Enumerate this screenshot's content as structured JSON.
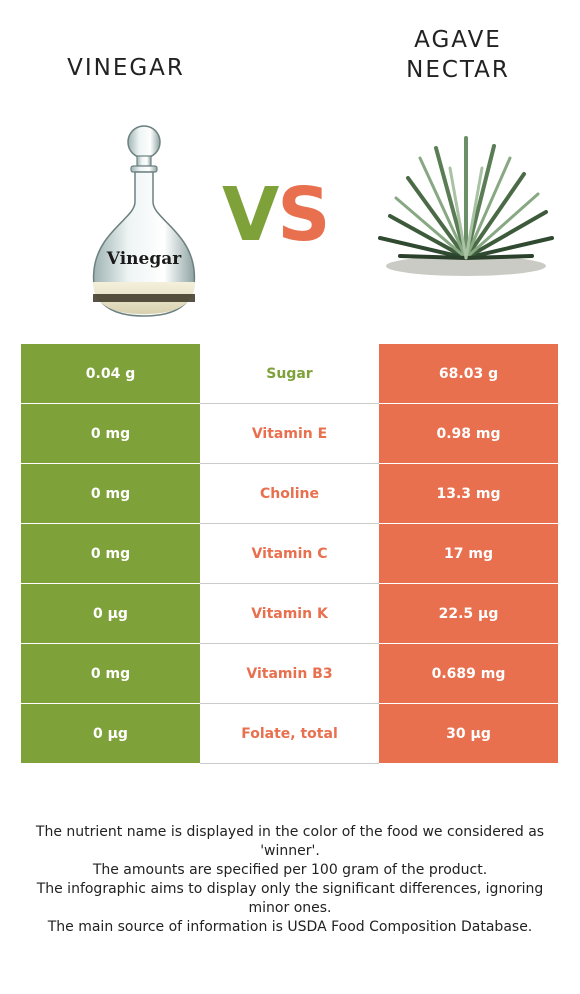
{
  "left_food": {
    "name": "VINEGAR",
    "color": "#7ea13a",
    "bottle_label": "Vinegar"
  },
  "right_food": {
    "name_line1": "AGAVE",
    "name_line2": "NECTAR",
    "color": "#e8704e"
  },
  "vs": {
    "v": "V",
    "s": "S"
  },
  "rows": [
    {
      "left": "0.04 g",
      "nutrient": "Sugar",
      "right": "68.03 g",
      "winner": "left"
    },
    {
      "left": "0 mg",
      "nutrient": "Vitamin E",
      "right": "0.98 mg",
      "winner": "right"
    },
    {
      "left": "0 mg",
      "nutrient": "Choline",
      "right": "13.3 mg",
      "winner": "right"
    },
    {
      "left": "0 mg",
      "nutrient": "Vitamin C",
      "right": "17 mg",
      "winner": "right"
    },
    {
      "left": "0 µg",
      "nutrient": "Vitamin K",
      "right": "22.5 µg",
      "winner": "right"
    },
    {
      "left": "0 mg",
      "nutrient": "Vitamin B3",
      "right": "0.689 mg",
      "winner": "right"
    },
    {
      "left": "0 µg",
      "nutrient": "Folate, total",
      "right": "30 µg",
      "winner": "right"
    }
  ],
  "footnotes": [
    "The nutrient name is displayed in the color of the food we considered as 'winner'.",
    "The amounts are specified per 100 gram of the product.",
    "The infographic aims to display only the significant differences, ignoring minor ones.",
    "The main source of information is USDA Food Composition Database."
  ]
}
